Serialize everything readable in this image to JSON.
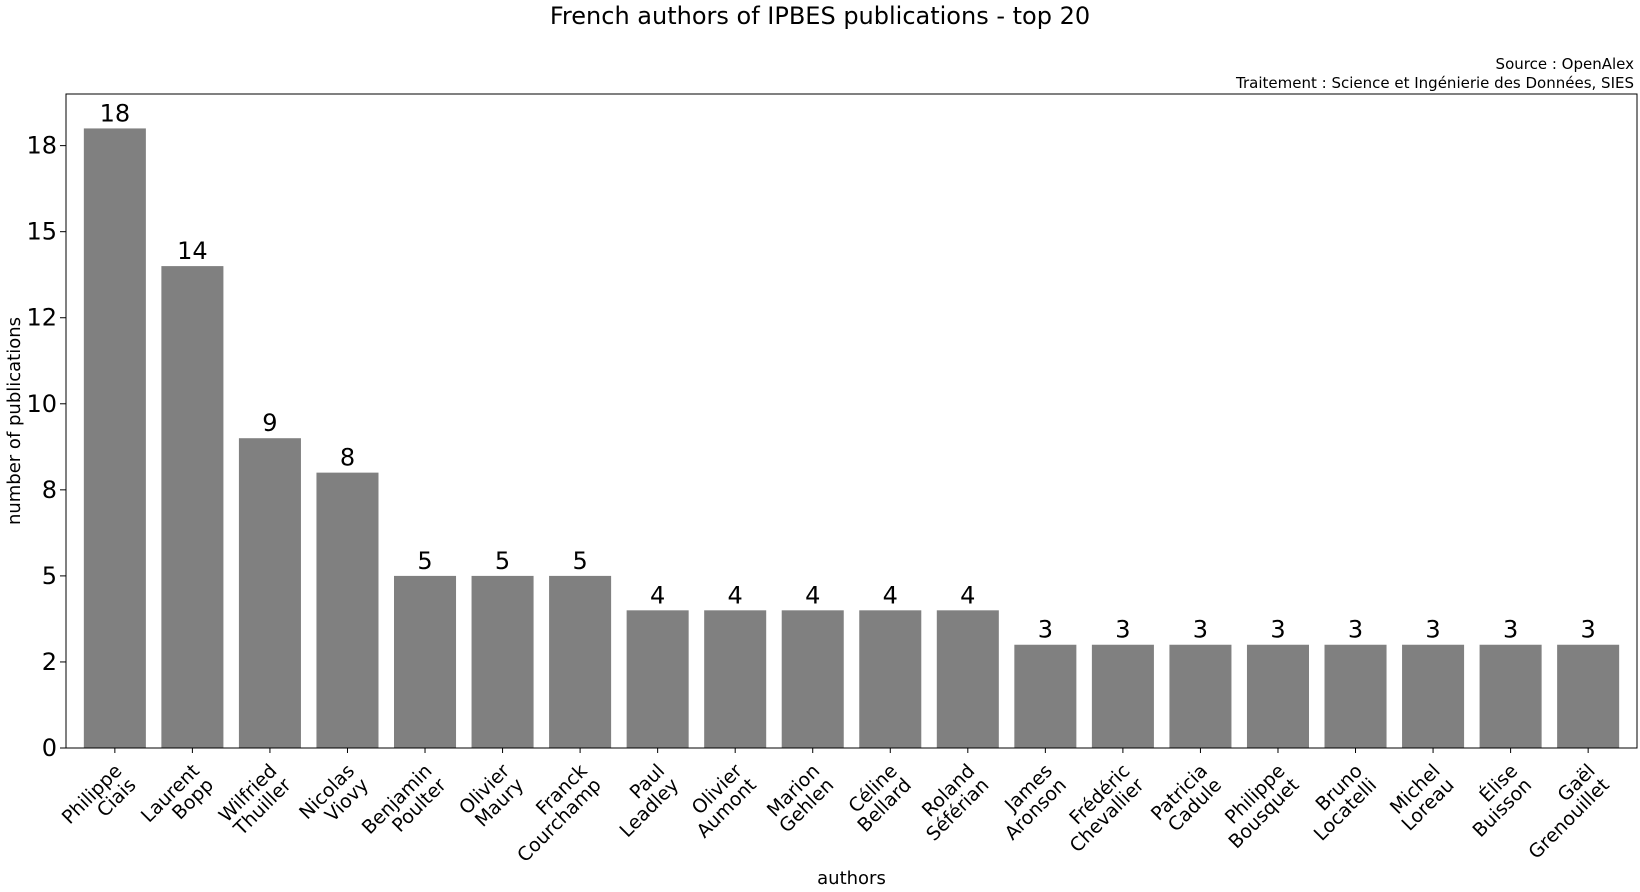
{
  "chart_data": {
    "type": "bar",
    "title": "French authors of IPBES publications - top 20",
    "source": [
      "Source : OpenAlex ",
      "Traitement : Science et Ingénierie des Données, SIES"
    ],
    "xlabel": "authors",
    "ylabel": "number of publications",
    "ylim": [
      0,
      19
    ],
    "yticks": [
      0,
      2.5,
      5,
      7.5,
      10,
      12.5,
      15,
      17.5
    ],
    "ytick_labels": [
      "0",
      "2",
      "5",
      "8",
      "10",
      "12",
      "15",
      "18"
    ],
    "grid": false,
    "bar_color": "#808080",
    "categories": [
      [
        "Philippe",
        "Ciais"
      ],
      [
        "Laurent",
        "Bopp"
      ],
      [
        "Wilfried",
        "Thuiller"
      ],
      [
        "Nicolas",
        "Viovy"
      ],
      [
        "Benjamin",
        "Poulter"
      ],
      [
        "Olivier",
        "Maury"
      ],
      [
        "Franck",
        "Courchamp"
      ],
      [
        "Paul",
        "Leadley"
      ],
      [
        "Olivier",
        "Aumont"
      ],
      [
        "Marion",
        "Gehlen"
      ],
      [
        "Céline",
        "Bellard"
      ],
      [
        "Roland",
        "Séférian"
      ],
      [
        "James",
        "Aronson"
      ],
      [
        "Frédéric",
        "Chevallier"
      ],
      [
        "Patricia",
        "Cadule"
      ],
      [
        "Philippe",
        "Bousquet"
      ],
      [
        "Bruno",
        "Locatelli"
      ],
      [
        "Michel",
        "Loreau"
      ],
      [
        "Élise",
        "Buisson"
      ],
      [
        "Gaël",
        "Grenouillet"
      ]
    ],
    "values": [
      18,
      14,
      9,
      8,
      5,
      5,
      5,
      4,
      4,
      4,
      4,
      4,
      3,
      3,
      3,
      3,
      3,
      3,
      3,
      3
    ]
  }
}
